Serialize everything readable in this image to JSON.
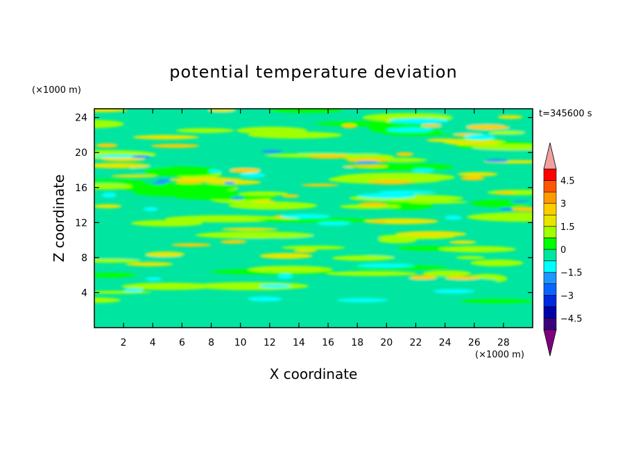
{
  "chart_data": {
    "type": "heatmap",
    "title": "potential temperature deviation",
    "xlabel": "X coordinate",
    "ylabel": "Z coordinate",
    "x_unit": "(×1000 m)",
    "y_unit": "(×1000 m)",
    "time_label": "t=345600 s",
    "xlim": [
      0,
      30
    ],
    "ylim": [
      0,
      25
    ],
    "x_ticks": [
      "2",
      "4",
      "6",
      "8",
      "10",
      "12",
      "14",
      "16",
      "18",
      "20",
      "22",
      "24",
      "26",
      "28"
    ],
    "y_ticks": [
      "4",
      "8",
      "12",
      "16",
      "20",
      "24"
    ],
    "colorbar": {
      "levels": [
        -5.25,
        -4.5,
        -3.75,
        -3,
        -2.25,
        -1.5,
        -0.75,
        0,
        0.75,
        1.5,
        2.25,
        3,
        3.75,
        4.5,
        5.25
      ],
      "tick_labels": [
        "4.5",
        "3",
        "1.5",
        "0",
        "−1.5",
        "−3",
        "−4.5"
      ],
      "colors": [
        "#7f007f",
        "#3c007f",
        "#0000aa",
        "#0028dc",
        "#0a64ff",
        "#1e96ff",
        "#00ffff",
        "#00e6a0",
        "#00ff00",
        "#a0ff00",
        "#e6e600",
        "#ffcc00",
        "#ff9900",
        "#ff5500",
        "#ff0000",
        "#f0a0a0"
      ],
      "extend": "both"
    },
    "field_description": "horizontally elongated bands of small deviations, mostly within -0.75..1.5"
  }
}
